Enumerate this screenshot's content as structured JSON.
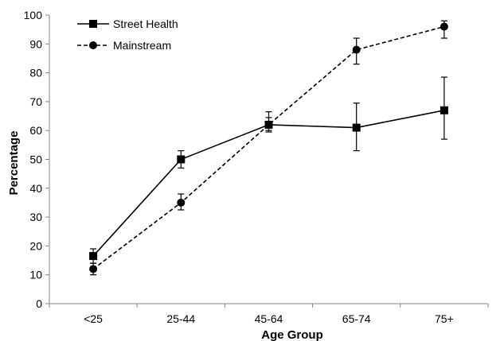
{
  "chart_data": {
    "type": "line",
    "categories": [
      "<25",
      "25-44",
      "45-64",
      "65-74",
      "75+"
    ],
    "series": [
      {
        "name": "Street Health",
        "marker": "square",
        "line_style": "solid",
        "values": [
          16.5,
          50,
          62,
          61,
          67
        ],
        "error_low": [
          14,
          47,
          59.5,
          53,
          57
        ],
        "error_high": [
          19,
          53,
          64.5,
          69.5,
          78.5
        ]
      },
      {
        "name": "Mainstream",
        "marker": "circle",
        "line_style": "dashed",
        "values": [
          12,
          35,
          62,
          88,
          96
        ],
        "error_low": [
          10,
          32.5,
          60,
          83,
          92
        ],
        "error_high": [
          14,
          38,
          66.5,
          92,
          98
        ]
      }
    ],
    "xlabel": "Age Group",
    "ylabel": "Percentage",
    "ylim": [
      0,
      100
    ],
    "yticks": [
      0,
      10,
      20,
      30,
      40,
      50,
      60,
      70,
      80,
      90,
      100
    ],
    "grid": false,
    "legend_position": "top-left",
    "color": "#000000"
  }
}
